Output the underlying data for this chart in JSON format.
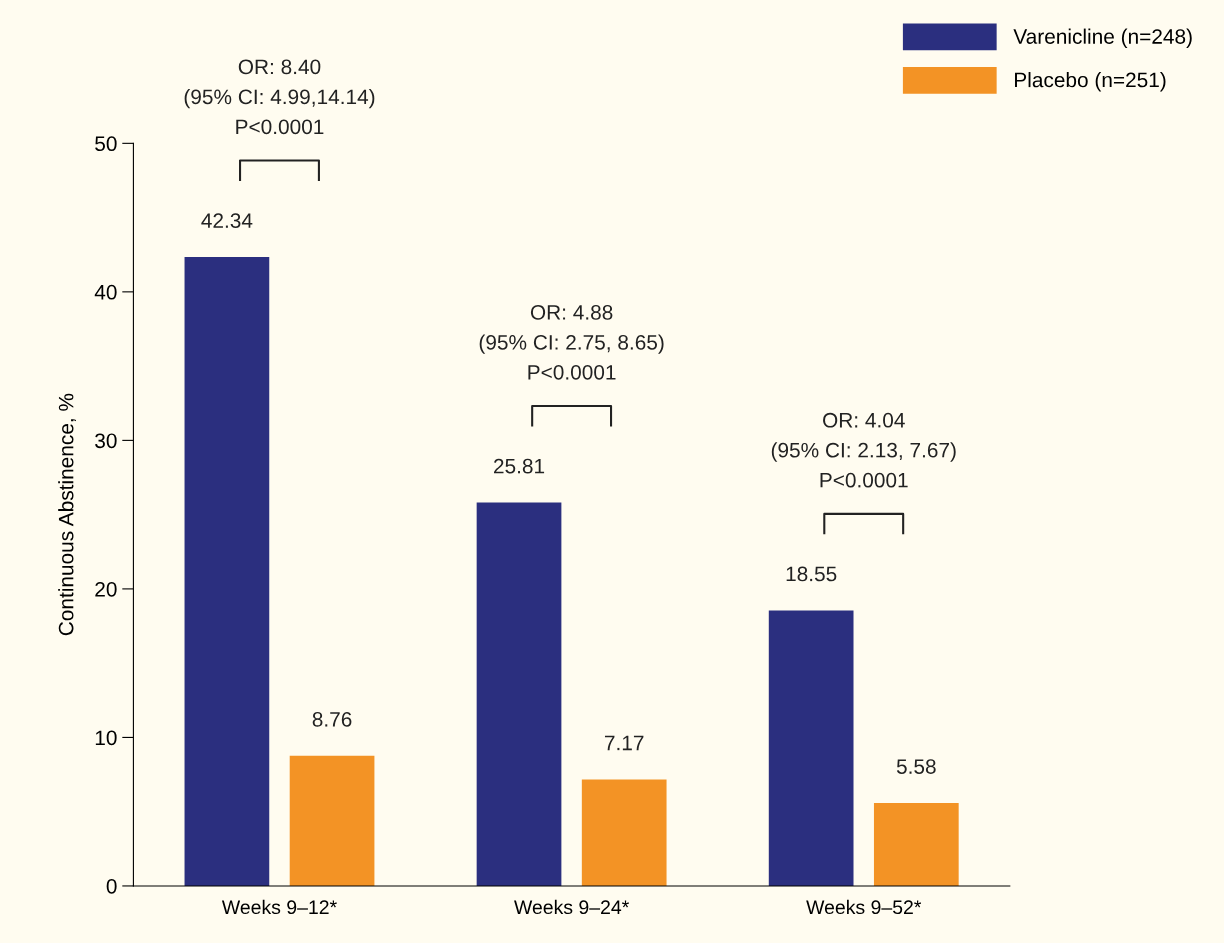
{
  "chart_data": {
    "type": "bar",
    "ylabel": "Continuous Abstinence, %",
    "categories": [
      "Weeks 9–12*",
      "Weeks 9–24*",
      "Weeks 9–52*"
    ],
    "series": [
      {
        "name": "Varenicline (n=248)",
        "color": "#2b2f7f",
        "values": [
          42.34,
          25.81,
          18.55
        ]
      },
      {
        "name": "Placebo (n=251)",
        "color": "#f39325",
        "values": [
          8.76,
          7.17,
          5.58
        ]
      }
    ],
    "ylim": [
      0,
      50
    ],
    "yticks": [
      0,
      10,
      20,
      30,
      40,
      50
    ],
    "grid": false,
    "legend": "top right",
    "data_labels": true,
    "annotations": [
      "OR: 8.40\n(95% CI: 4.99,14.14)\nP<0.0001",
      "OR: 4.88\n(95% CI: 2.75, 8.65)\nP<0.0001",
      "OR: 4.04\n(95% CI: 2.13, 7.67)\nP<0.0001"
    ]
  }
}
